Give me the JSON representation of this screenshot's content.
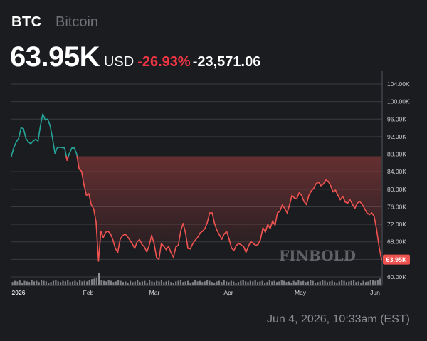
{
  "header": {
    "symbol": "BTC",
    "name": "Bitcoin",
    "price": "63.95K",
    "currency": "USD",
    "change_pct": "-26.93%",
    "change_abs": "-23,571.06"
  },
  "footer": {
    "timestamp": "Jun 4, 2026, 10:33am (EST)"
  },
  "watermark": "FINBOLD",
  "colors": {
    "up": "#26a69a",
    "down": "#ef5350",
    "price_badge": "#ef5350",
    "background": "#1b1c20",
    "grid": "#3a3b40"
  },
  "chart_data": {
    "type": "line",
    "x_labels": [
      "2026",
      "Feb",
      "Mar",
      "Apr",
      "May",
      "Jun"
    ],
    "y_ticks": [
      "60.00K",
      "64.00K",
      "68.00K",
      "72.00K",
      "76.00K",
      "80.00K",
      "84.00K",
      "88.00K",
      "92.00K",
      "96.00K",
      "100.00K",
      "104.00K"
    ],
    "ylim": [
      60000,
      104000
    ],
    "current_price_label": "63.95K",
    "baseline_price": 87520,
    "series": [
      {
        "values": [
          87500,
          89500,
          90800,
          91600,
          94000,
          93800,
          91600,
          90800,
          90400,
          91000,
          91400,
          91000,
          94500,
          97200,
          95800,
          96000,
          94500,
          91600,
          88200,
          89500,
          89600,
          89500,
          89400,
          86600,
          88200,
          89400,
          89400,
          88000,
          84600,
          84100,
          81000,
          78600,
          79000,
          76500,
          75500,
          72500,
          63600,
          70400,
          69000,
          70200,
          70400,
          69800,
          68400,
          66500,
          65600,
          68600,
          69400,
          69800,
          69200,
          68400,
          67500,
          66500,
          68000,
          68500,
          67400,
          66800,
          65700,
          67200,
          69500,
          67600,
          64500,
          64000,
          67600,
          67000,
          66200,
          67000,
          65500,
          64500,
          66800,
          67200,
          70400,
          72200,
          70000,
          66500,
          66400,
          67600,
          68400,
          69000,
          70000,
          70400,
          71000,
          72400,
          74600,
          74600,
          72200,
          70600,
          69600,
          68600,
          69800,
          70400,
          68600,
          66600,
          66000,
          67200,
          67600,
          67300,
          66900,
          65600,
          67000,
          68100,
          67600,
          67200,
          67400,
          68600,
          71200,
          70200,
          72000,
          71000,
          72800,
          71800,
          74600,
          75000,
          76400,
          75600,
          74600,
          76400,
          78600,
          78000,
          77800,
          79200,
          78600,
          77200,
          76500,
          78600,
          79600,
          80200,
          81300,
          81600,
          80800,
          81200,
          82100,
          81800,
          80800,
          79400,
          79800,
          78600,
          77600,
          78400,
          77100,
          76800,
          77600,
          76600,
          75600,
          76800,
          77200,
          76600,
          75600,
          74600,
          74200,
          74600,
          73800,
          70800,
          67000,
          63950
        ]
      }
    ],
    "volume": [
      0.6,
      0.8,
      0.7,
      0.9,
      0.5,
      0.8,
      0.7,
      0.6,
      0.9,
      0.7,
      0.8,
      0.6,
      0.9,
      0.8,
      0.7,
      0.5,
      0.6,
      0.8,
      0.9,
      0.7,
      0.6,
      0.8,
      0.7,
      0.9,
      0.6,
      0.7,
      0.8,
      0.6,
      0.9,
      0.7,
      0.8,
      0.7,
      0.9,
      1.1,
      1.2,
      1.4,
      2.2,
      1.0,
      0.8,
      0.7,
      0.9,
      0.8,
      0.6,
      0.7,
      0.9,
      0.8,
      0.6,
      0.7,
      0.5,
      0.8,
      0.6,
      0.7,
      0.9,
      0.6,
      0.7,
      0.8,
      0.5,
      0.9,
      0.7,
      0.6,
      0.8,
      0.7,
      0.9,
      0.6,
      0.7,
      0.8,
      0.6,
      0.5,
      0.7,
      0.8,
      0.9,
      0.6,
      0.7,
      0.8,
      0.5,
      0.6,
      0.9,
      0.7,
      0.8,
      0.6,
      0.7,
      0.9,
      0.8,
      0.6,
      0.5,
      0.7,
      0.8,
      0.6,
      0.9,
      0.7,
      0.6,
      0.8,
      0.7,
      0.5,
      0.6,
      0.8,
      0.9,
      0.7,
      0.6,
      0.8,
      0.7,
      0.9,
      0.6,
      0.7,
      0.8,
      0.5,
      0.6,
      0.9,
      0.7,
      0.8,
      0.6,
      0.7,
      0.9,
      0.8,
      0.6,
      0.7,
      0.5,
      0.8,
      0.6,
      0.9,
      0.7,
      0.8,
      0.6,
      0.7,
      0.9,
      0.8,
      0.5,
      0.6,
      0.7,
      0.9,
      0.8,
      0.6,
      0.7,
      0.8,
      0.6,
      0.5,
      0.7,
      0.9,
      0.8,
      0.6,
      0.7,
      0.8,
      0.9,
      0.6,
      0.7,
      0.5,
      0.8,
      0.6,
      0.7,
      0.9,
      1.0,
      0.8,
      0.9,
      1.2
    ]
  }
}
